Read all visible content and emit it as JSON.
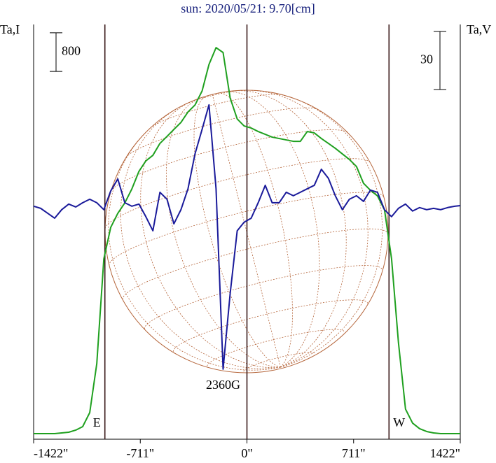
{
  "chart_data": {
    "type": "line",
    "title": "sun: 2020/05/21: 9.70[cm]",
    "y_label": "Ta,I",
    "y2_label": "Ta,V",
    "x": [
      -1422,
      -1375,
      -1329,
      -1282,
      -1235,
      -1188,
      -1141,
      -1095,
      -1048,
      -1001,
      -954,
      -908,
      -861,
      -814,
      -767,
      -720,
      -674,
      -627,
      -580,
      -533,
      -487,
      -440,
      -393,
      -346,
      -299,
      -253,
      -206,
      -159,
      -112,
      -65,
      -19,
      28,
      75,
      122,
      168,
      215,
      262,
      309,
      356,
      402,
      449,
      496,
      543,
      589,
      636,
      683,
      730,
      777,
      823,
      870,
      917,
      964,
      1010,
      1057,
      1104,
      1151,
      1198,
      1244,
      1291,
      1338,
      1385,
      1422
    ],
    "series": [
      {
        "name": "Ta,I",
        "color": "#1fa01f",
        "axis": "y",
        "values": [
          116,
          116,
          116,
          116,
          131,
          145,
          189,
          261,
          551,
          1566,
          3741,
          4394,
          4684,
          4901,
          5191,
          5554,
          5771,
          5887,
          6134,
          6279,
          6424,
          6569,
          6786,
          6931,
          7221,
          7772,
          8120,
          8018,
          7076,
          6641,
          6496,
          6453,
          6380,
          6322,
          6264,
          6235,
          6206,
          6177,
          6177,
          6380,
          6351,
          6235,
          6134,
          6032,
          5916,
          5800,
          5655,
          5307,
          5162,
          5046,
          4756,
          3741,
          2001,
          624,
          334,
          218,
          160,
          131,
          116,
          116,
          116,
          116
        ]
      },
      {
        "name": "Ta,V",
        "color": "#1a1a9a",
        "axis": "y2",
        "values": [
          1.1,
          0,
          -2.5,
          -5.1,
          -0.7,
          2.2,
          0.7,
          2.9,
          4.7,
          2.9,
          -0.7,
          9.0,
          15.2,
          2.9,
          1.1,
          2.2,
          -4.3,
          -11.6,
          8.3,
          4.7,
          -8.0,
          -0.7,
          10.1,
          28.2,
          40.8,
          53.5,
          10.1,
          -83.1,
          -44.1,
          -11.6,
          -7.2,
          -5.1,
          2.9,
          11.9,
          2.9,
          2.9,
          8.3,
          6.5,
          8.3,
          10.1,
          11.9,
          20.2,
          15.5,
          6.5,
          -0.7,
          4.7,
          6.5,
          3.6,
          9.4,
          8.3,
          -0.7,
          -4.3,
          0,
          2.2,
          -1.4,
          0.4,
          -0.7,
          0,
          -0.7,
          0.4,
          1.1,
          1.4
        ]
      }
    ],
    "xlim": [
      -1422,
      1422
    ],
    "xticks": [
      {
        "value": -1422,
        "label": "-1422\""
      },
      {
        "value": -711,
        "label": "-711\""
      },
      {
        "value": 0,
        "label": "0\""
      },
      {
        "value": 711,
        "label": "711\""
      },
      {
        "value": 1422,
        "label": "1422\""
      }
    ],
    "ylim": [
      0,
      8600
    ],
    "y2lim": [
      -119.3,
      95
    ],
    "scale_bars": [
      {
        "axis": "y",
        "value": 800
      },
      {
        "axis": "y2",
        "value": 30
      }
    ],
    "markers": [
      {
        "x": -947,
        "label": "E"
      },
      {
        "x": 0
      },
      {
        "x": 947,
        "label": "W"
      }
    ],
    "annotation": "2360G"
  }
}
